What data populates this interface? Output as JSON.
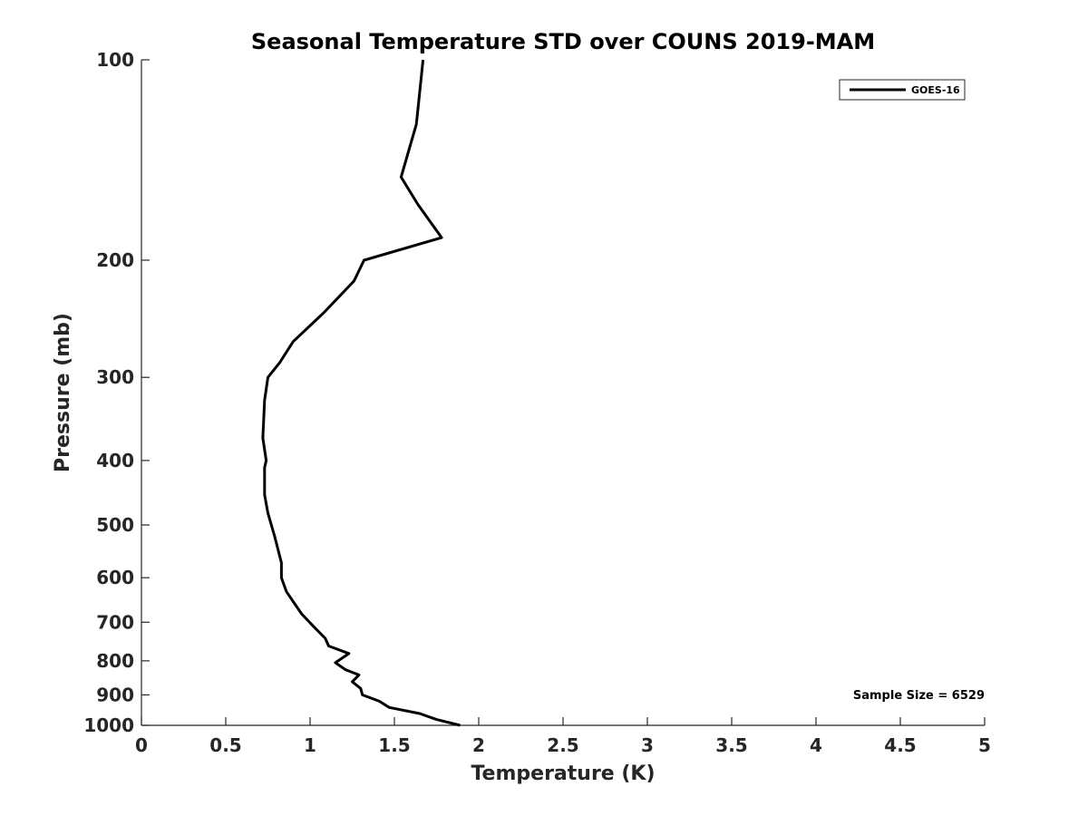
{
  "chart_data": {
    "type": "line",
    "title": "Seasonal Temperature STD over COUNS  2019-MAM",
    "xlabel": "Temperature (K)",
    "ylabel": "Pressure (mb)",
    "xlim": [
      0,
      5
    ],
    "ylim": [
      100,
      1000
    ],
    "yscale": "log",
    "y_reversed": true,
    "grid": false,
    "xticks": [
      0,
      0.5,
      1,
      1.5,
      2,
      2.5,
      3,
      3.5,
      4,
      4.5,
      5
    ],
    "xtick_labels": [
      "0",
      "0.5",
      "1",
      "1.5",
      "2",
      "2.5",
      "3",
      "3.5",
      "4",
      "4.5",
      "5"
    ],
    "yticks": [
      100,
      200,
      300,
      400,
      500,
      600,
      700,
      800,
      900,
      1000
    ],
    "ytick_labels": [
      "100",
      "200",
      "300",
      "400",
      "500",
      "600",
      "700",
      "800",
      "900",
      "1000"
    ],
    "legend": {
      "position": "top-right",
      "entries": [
        "GOES-16"
      ]
    },
    "annotation": "Sample Size = 6529",
    "series": [
      {
        "name": "GOES-16",
        "color": "#000000",
        "points": [
          {
            "x": 1.67,
            "p": 100
          },
          {
            "x": 1.63,
            "p": 125
          },
          {
            "x": 1.54,
            "p": 150
          },
          {
            "x": 1.64,
            "p": 165
          },
          {
            "x": 1.78,
            "p": 185
          },
          {
            "x": 1.32,
            "p": 200
          },
          {
            "x": 1.26,
            "p": 215
          },
          {
            "x": 1.08,
            "p": 240
          },
          {
            "x": 0.9,
            "p": 265
          },
          {
            "x": 0.82,
            "p": 285
          },
          {
            "x": 0.75,
            "p": 300
          },
          {
            "x": 0.73,
            "p": 325
          },
          {
            "x": 0.72,
            "p": 370
          },
          {
            "x": 0.74,
            "p": 400
          },
          {
            "x": 0.73,
            "p": 410
          },
          {
            "x": 0.73,
            "p": 450
          },
          {
            "x": 0.75,
            "p": 480
          },
          {
            "x": 0.79,
            "p": 520
          },
          {
            "x": 0.83,
            "p": 570
          },
          {
            "x": 0.83,
            "p": 600
          },
          {
            "x": 0.86,
            "p": 630
          },
          {
            "x": 0.95,
            "p": 680
          },
          {
            "x": 1.02,
            "p": 710
          },
          {
            "x": 1.09,
            "p": 740
          },
          {
            "x": 1.11,
            "p": 760
          },
          {
            "x": 1.23,
            "p": 780
          },
          {
            "x": 1.15,
            "p": 805
          },
          {
            "x": 1.21,
            "p": 825
          },
          {
            "x": 1.29,
            "p": 840
          },
          {
            "x": 1.25,
            "p": 860
          },
          {
            "x": 1.3,
            "p": 880
          },
          {
            "x": 1.31,
            "p": 900
          },
          {
            "x": 1.41,
            "p": 920
          },
          {
            "x": 1.47,
            "p": 940
          },
          {
            "x": 1.65,
            "p": 960
          },
          {
            "x": 1.75,
            "p": 980
          },
          {
            "x": 1.89,
            "p": 1000
          }
        ]
      }
    ]
  }
}
